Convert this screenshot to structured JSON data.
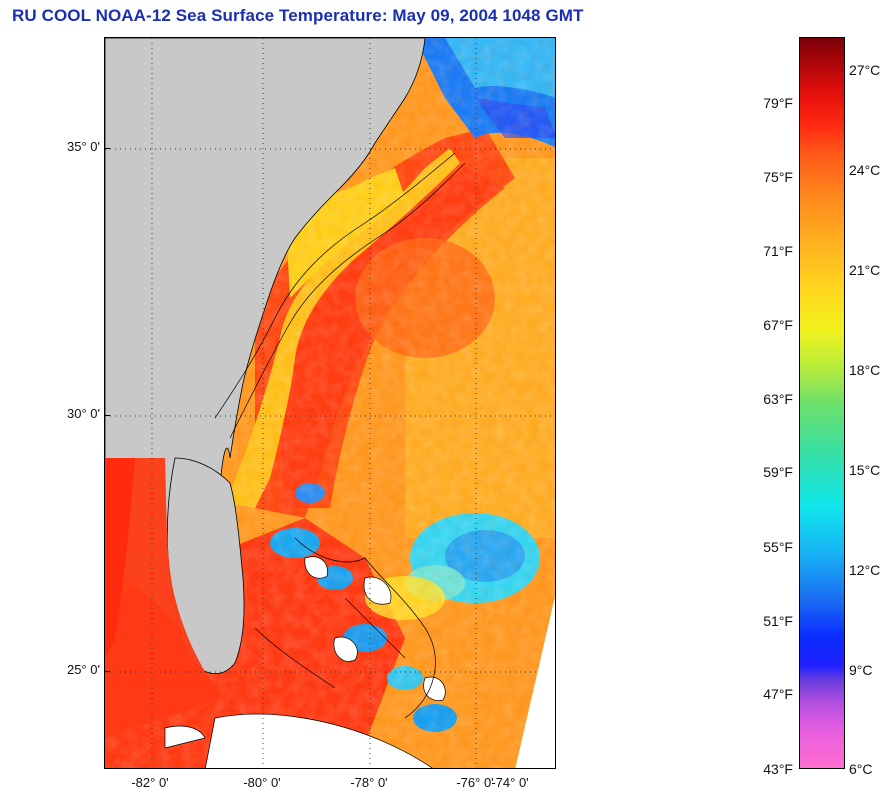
{
  "title": "RU COOL  NOAA-12  Sea Surface Temperature:  May 09, 2004 1048 GMT",
  "map": {
    "lat_labels": [
      "35° 0'",
      "30° 0'",
      "25° 0'"
    ],
    "lon_labels": [
      "-82° 0'",
      "-80° 0'",
      "-78° 0'",
      "-76° 0'",
      "-74° 0'"
    ],
    "colors": {
      "land": "#c8c8c8",
      "frame": "#000000",
      "gulf_stream": "#ff4a14",
      "shelf": "#ffc21c",
      "cold_eddy": "#35d0f0",
      "north_cold": "#1a7cf6"
    }
  },
  "colorbar": {
    "fahrenheit": [
      "79°F",
      "75°F",
      "71°F",
      "67°F",
      "63°F",
      "59°F",
      "55°F",
      "51°F",
      "47°F",
      "43°F"
    ],
    "celsius": [
      "27°C",
      "24°C",
      "21°C",
      "18°C",
      "15°C",
      "12°C",
      "9°C",
      "6°C"
    ],
    "range_f": [
      43,
      81
    ],
    "range_c": [
      6,
      27.2
    ]
  }
}
